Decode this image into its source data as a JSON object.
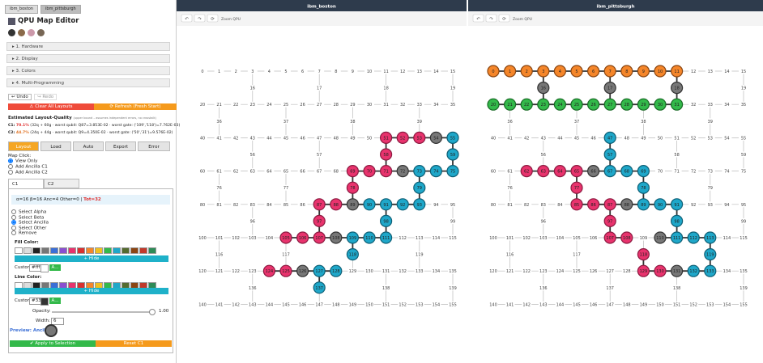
{
  "tabs": [
    "ibm_boston",
    "ibm_pittsburgh"
  ],
  "sidebar": {
    "title": "QPU Map Editor",
    "sections": [
      "▸ 1. Hardware",
      "▸ 2. Display",
      "▸ 3. Colors",
      "▸ 4. Multi-Programming"
    ],
    "undo": "↩ Undo",
    "redo": "↪ Redo",
    "clear": "⚠ Clear All Layouts",
    "refresh": "⟳ Refresh (Fresh Start)",
    "quality_title": "Estimated Layout-Quality",
    "quality_note": "(upper bound – assumes independent errors, no crosstalk)",
    "quality": [
      {
        "label": "C1:",
        "pct": "70.1%",
        "detail": "(32q + 60g · worst qubit: Q87=3.853E-02 · worst gate: ('109','118')=7.762E-03)"
      },
      {
        "label": "C2:",
        "pct": "44.7%",
        "detail": "(24q + 44g · worst qubit: Q9=4.350E-02 · worst gate: ('50','31')=9.576E-02)"
      }
    ],
    "buttons": [
      "Layout",
      "Load",
      "Auto",
      "Export",
      "Error"
    ],
    "map_click": "Map Click:",
    "map_click_options": [
      "View Only",
      "Add Ancilla C1",
      "Add Ancilla C2"
    ],
    "circuit_tabs": [
      "C1",
      "C2"
    ],
    "stats": "α=16 β=16 Anc=4 Other=0 |",
    "total": "Tot=32",
    "select_options": [
      "Select Alpha",
      "Select Beta",
      "Select Ancilla",
      "Select Other",
      "Remove"
    ],
    "fill_color": "Fill Color:",
    "line_color": "Line Color:",
    "hide": "+ Hide",
    "custom": "Custom",
    "fill_custom": "#fff",
    "line_custom": "#333",
    "apply_short": "A...",
    "swatches": [
      "#ffffff",
      "#dddddd",
      "#222222",
      "#777777",
      "#3b6fd6",
      "#8a4fd0",
      "#e8336d",
      "#d93030",
      "#f5862a",
      "#f0c020",
      "#33b94a",
      "#1fa7c9",
      "#556b2f",
      "#8b4513",
      "#c0392b",
      "#2e8b57"
    ],
    "opacity": "Opacity:",
    "opacity_value": "1.00",
    "width": "Width:",
    "width_value": "6",
    "preview": "Preview: Ancilla",
    "apply": "✔ Apply to Selection",
    "reset": "Reset C1"
  },
  "panels": [
    {
      "title": "ibm_boston",
      "tools": [
        "↶",
        "↷",
        "⟳"
      ],
      "zoom": "Zoom QPU",
      "groups": [
        {
          "fill": "#e8336d",
          "stroke": "#8b1a40",
          "qubits": [
            51,
            52,
            53,
            58,
            69,
            70,
            71,
            78,
            87,
            88,
            97,
            105,
            106,
            107,
            124,
            125
          ]
        },
        {
          "fill": "#1fa7c9",
          "stroke": "#0e5f75",
          "qubits": [
            55,
            59,
            73,
            74,
            75,
            79,
            90,
            91,
            92,
            93,
            98,
            109,
            110,
            111,
            118,
            127,
            128,
            137
          ]
        },
        {
          "fill": "#777777",
          "stroke": "#333333",
          "qubits": [
            54,
            72,
            89,
            108,
            126
          ]
        }
      ]
    },
    {
      "title": "ibm_pittsburgh",
      "tools": [
        "↶",
        "↷",
        "⟳"
      ],
      "zoom": "Zoom QPU",
      "groups": [
        {
          "fill": "#f5862a",
          "stroke": "#8a4510",
          "qubits": [
            0,
            1,
            2,
            3,
            4,
            5,
            6,
            7,
            8,
            9,
            10,
            11
          ]
        },
        {
          "fill": "#33b94a",
          "stroke": "#186a25",
          "qubits": [
            20,
            21,
            22,
            23,
            24,
            25,
            26,
            27,
            28,
            29,
            30,
            31
          ]
        },
        {
          "fill": "#777777",
          "stroke": "#333333",
          "qubits": [
            16,
            17,
            18,
            66,
            88,
            110,
            131
          ]
        },
        {
          "fill": "#e8336d",
          "stroke": "#8b1a40",
          "qubits": [
            62,
            63,
            64,
            65,
            77,
            85,
            86,
            87,
            97,
            107,
            108,
            118,
            129,
            130
          ]
        },
        {
          "fill": "#1fa7c9",
          "stroke": "#0e5f75",
          "qubits": [
            47,
            57,
            67,
            68,
            69,
            78,
            89,
            90,
            91,
            98,
            111,
            112,
            113,
            119,
            132,
            133
          ]
        }
      ]
    }
  ],
  "qubit_labels": [
    0,
    1,
    2,
    3,
    4,
    5,
    6,
    7,
    8,
    9,
    10,
    11,
    12,
    13,
    14,
    15,
    16,
    17,
    18,
    19,
    20,
    21,
    22,
    23,
    24,
    25,
    26,
    27,
    28,
    29,
    30,
    31,
    32,
    33,
    34,
    35,
    36,
    37,
    38,
    39,
    40,
    41,
    42,
    43,
    44,
    45,
    46,
    47,
    48,
    49,
    50,
    51,
    52,
    53,
    54,
    55,
    56,
    57,
    58,
    59,
    60,
    61,
    62,
    63,
    64,
    65,
    66,
    67,
    68,
    69,
    70,
    71,
    72,
    73,
    74,
    75,
    76,
    77,
    78,
    79,
    80,
    81,
    82,
    83,
    84,
    85,
    86,
    87,
    88,
    89,
    90,
    91,
    92,
    93,
    94,
    95,
    96,
    97,
    98,
    99,
    100,
    101,
    102,
    103,
    104,
    105,
    106,
    107,
    108,
    109,
    110,
    111,
    112,
    113,
    114,
    115,
    116,
    117,
    118,
    119,
    120,
    121,
    122,
    123,
    124,
    125,
    126,
    127,
    128,
    129,
    130,
    131,
    132,
    133,
    134,
    135,
    136,
    137,
    138,
    139,
    140,
    141,
    142,
    143,
    144,
    145,
    146,
    147,
    148,
    149,
    150,
    151,
    152,
    153,
    154,
    155
  ]
}
